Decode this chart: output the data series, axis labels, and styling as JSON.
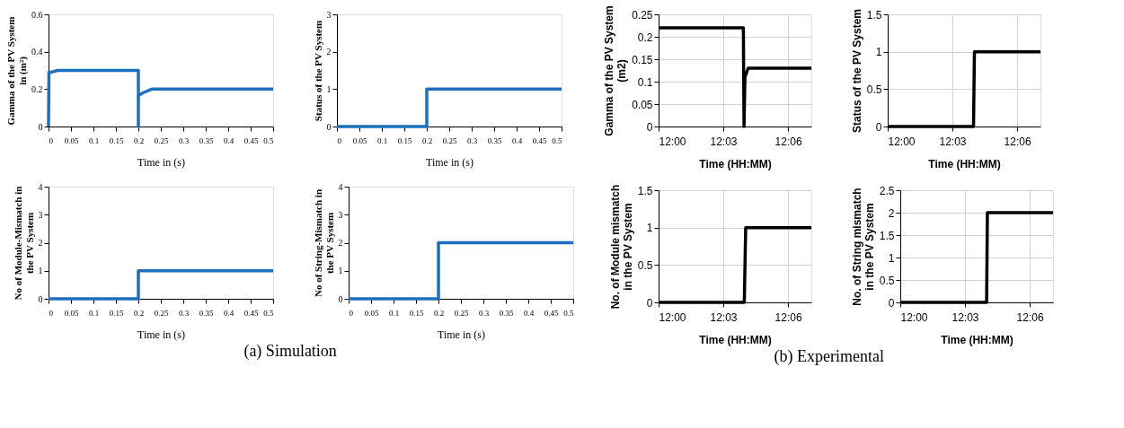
{
  "chart_data": [
    {
      "type": "line",
      "xlabel": "Time in (s)",
      "ylabel": "Gamma of the PV System in (m²)",
      "xlim": [
        0,
        0.5
      ],
      "xticks": [
        0,
        0.05,
        0.1,
        0.15,
        0.2,
        0.25,
        0.3,
        0.35,
        0.4,
        0.45,
        0.5
      ],
      "ylim": [
        0,
        0.6
      ],
      "yticks": [
        0,
        0.2,
        0.4,
        0.6
      ],
      "series": [
        {
          "color": "#1f6fbf",
          "x": [
            0,
            0.001,
            0.005,
            0.02,
            0.2,
            0.2,
            0.2,
            0.21,
            0.23,
            0.5
          ],
          "values": [
            0,
            0.29,
            0.29,
            0.3,
            0.3,
            0,
            0.165,
            0.18,
            0.2,
            0.2
          ]
        }
      ]
    },
    {
      "type": "line",
      "xlabel": "Time in (s)",
      "ylabel": "Status of the PV System",
      "xlim": [
        0,
        0.5
      ],
      "xticks": [
        0,
        0.05,
        0.1,
        0.15,
        0.2,
        0.25,
        0.3,
        0.35,
        0.4,
        0.45,
        0.5
      ],
      "ylim": [
        0,
        3
      ],
      "yticks": [
        0,
        1,
        2,
        3
      ],
      "series": [
        {
          "color": "#1f6fbf",
          "x": [
            0,
            0.2,
            0.2,
            0.5
          ],
          "values": [
            0,
            0,
            1,
            1
          ]
        }
      ]
    },
    {
      "type": "line",
      "xlabel": "Time in (s)",
      "ylabel": "No of Module-Mismatch in the PV System",
      "xlim": [
        0,
        0.5
      ],
      "xticks": [
        0,
        0.05,
        0.1,
        0.15,
        0.2,
        0.25,
        0.3,
        0.35,
        0.4,
        0.45,
        0.5
      ],
      "ylim": [
        0,
        4
      ],
      "yticks": [
        0,
        1,
        2,
        3,
        4
      ],
      "annotations": [
        "(a)   Simulation"
      ],
      "series": [
        {
          "color": "#1f6fbf",
          "x": [
            0,
            0.2,
            0.2,
            0.5
          ],
          "values": [
            0,
            0,
            1,
            1
          ]
        }
      ]
    },
    {
      "type": "line",
      "xlabel": "Time in (s)",
      "ylabel": "No of String-Mismatch in the PV System",
      "xlim": [
        0,
        0.5
      ],
      "xticks": [
        0,
        0.05,
        0.1,
        0.15,
        0.2,
        0.25,
        0.3,
        0.35,
        0.4,
        0.45,
        0.5
      ],
      "ylim": [
        0,
        4
      ],
      "yticks": [
        0,
        1,
        2,
        3,
        4
      ],
      "series": [
        {
          "color": "#1f6fbf",
          "x": [
            0,
            0.2,
            0.2,
            0.5
          ],
          "values": [
            0,
            0,
            2,
            2
          ]
        }
      ]
    },
    {
      "type": "line",
      "xlabel": "Time (HH:MM)",
      "ylabel": "Gamma of the PV System (m2)",
      "xlim": [
        12,
        12.118
      ],
      "xticks": [
        {
          "value": 12,
          "label": "12:00"
        },
        {
          "value": 12.05,
          "label": "12:03"
        },
        {
          "value": 12.1,
          "label": "12:06"
        }
      ],
      "ylim": [
        0,
        0.25
      ],
      "yticks": [
        0,
        0.05,
        0.1,
        0.15,
        0.2,
        0.25
      ],
      "grid": true,
      "series": [
        {
          "color": "#000000",
          "x": [
            12,
            12.0655,
            12.066,
            12.0667,
            12.0692,
            12.118
          ],
          "values": [
            0.22,
            0.22,
            0,
            0.11,
            0.13,
            0.13
          ]
        }
      ]
    },
    {
      "type": "line",
      "xlabel": "Time (HH:MM)",
      "ylabel": "Status of the PV System",
      "xlim": [
        12,
        12.118
      ],
      "xticks": [
        {
          "value": 12,
          "label": "12:00"
        },
        {
          "value": 12.05,
          "label": "12:03"
        },
        {
          "value": 12.1,
          "label": "12:06"
        }
      ],
      "ylim": [
        0,
        1.5
      ],
      "yticks": [
        0,
        0.5,
        1,
        1.5
      ],
      "grid": true,
      "series": [
        {
          "color": "#000000",
          "x": [
            12,
            12.0663,
            12.067,
            12.118
          ],
          "values": [
            0,
            0,
            1,
            1
          ]
        }
      ]
    },
    {
      "type": "line",
      "xlabel": "Time (HH:MM)",
      "ylabel": "No. of Module mismatch in the PV System",
      "xlim": [
        12,
        12.118
      ],
      "xticks": [
        {
          "value": 12,
          "label": "12:00"
        },
        {
          "value": 12.05,
          "label": "12:03"
        },
        {
          "value": 12.1,
          "label": "12:06"
        }
      ],
      "ylim": [
        0,
        1.5
      ],
      "yticks": [
        0,
        0.5,
        1,
        1.5
      ],
      "grid": true,
      "annotations": [
        "(b) Experimental"
      ],
      "series": [
        {
          "color": "#000000",
          "x": [
            12,
            12.0662,
            12.0673,
            12.118
          ],
          "values": [
            0,
            0,
            1,
            1
          ]
        }
      ]
    },
    {
      "type": "line",
      "xlabel": "Time (HH:MM)",
      "ylabel": "No. of String mismatch in the PV System",
      "xlim": [
        12,
        12.118
      ],
      "xticks": [
        {
          "value": 12,
          "label": "12:00"
        },
        {
          "value": 12.05,
          "label": "12:03"
        },
        {
          "value": 12.1,
          "label": "12:06"
        }
      ],
      "ylim": [
        0,
        2.5
      ],
      "yticks": [
        0,
        0.5,
        1,
        1.5,
        2,
        2.5
      ],
      "grid": true,
      "series": [
        {
          "color": "#000000",
          "x": [
            12,
            12.0667,
            12.0673,
            12.118
          ],
          "values": [
            0,
            0,
            2,
            2
          ]
        }
      ]
    }
  ]
}
